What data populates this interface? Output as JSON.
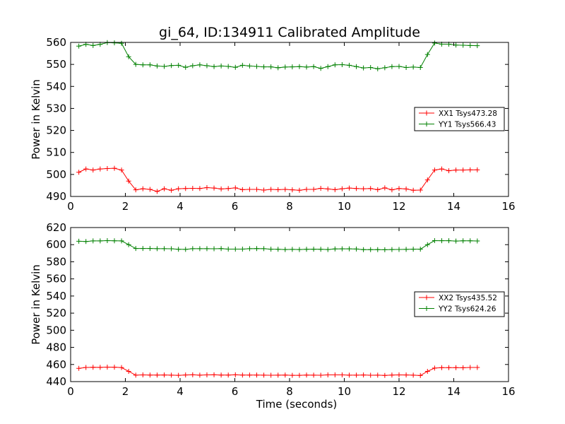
{
  "figure_title": "gi_64, ID:134911 Calibrated Amplitude",
  "colors": {
    "red": "#ff0000",
    "green": "#008000"
  },
  "chart_data": [
    {
      "type": "line",
      "title": "gi_64, ID:134911 Calibrated Amplitude",
      "xlabel": "",
      "ylabel": "Power in Kelvin",
      "xlim": [
        0,
        16
      ],
      "ylim": [
        490,
        560
      ],
      "xticks": [
        0,
        2,
        4,
        6,
        8,
        10,
        12,
        14,
        16
      ],
      "yticks": [
        490,
        500,
        510,
        520,
        530,
        540,
        550,
        560
      ],
      "grid": false,
      "legend_position": "right",
      "x": [
        0.3,
        0.56,
        0.82,
        1.08,
        1.34,
        1.6,
        1.86,
        2.12,
        2.38,
        2.64,
        2.9,
        3.16,
        3.42,
        3.68,
        3.94,
        4.2,
        4.46,
        4.72,
        4.98,
        5.24,
        5.5,
        5.76,
        6.02,
        6.28,
        6.54,
        6.8,
        7.06,
        7.32,
        7.58,
        7.84,
        8.1,
        8.36,
        8.62,
        8.88,
        9.14,
        9.4,
        9.66,
        9.92,
        10.18,
        10.44,
        10.7,
        10.96,
        11.22,
        11.48,
        11.74,
        12.0,
        12.26,
        12.52,
        12.78,
        13.04,
        13.3,
        13.56,
        13.82,
        14.08,
        14.34,
        14.6,
        14.86
      ],
      "series": [
        {
          "name": "XX1 Tsys473.28",
          "color": "#ff0000",
          "values": [
            501,
            502.5,
            502,
            502.5,
            502.7,
            502.8,
            502,
            497,
            493,
            493.5,
            493.2,
            492.3,
            493.5,
            492.8,
            493.5,
            493.6,
            493.7,
            493.6,
            494,
            493.8,
            493.4,
            493.6,
            493.9,
            493.1,
            493.2,
            493.2,
            492.9,
            493.2,
            493.1,
            493.2,
            493.0,
            492.8,
            493.2,
            493.2,
            493.7,
            493.4,
            493.1,
            493.5,
            493.8,
            493.6,
            493.5,
            493.6,
            493.1,
            493.9,
            493.0,
            493.6,
            493.4,
            492.8,
            492.9,
            497.5,
            502,
            502.5,
            501.7,
            502,
            502,
            502.1,
            502.1
          ]
        },
        {
          "name": "YY1 Tsys566.43",
          "color": "#008000",
          "values": [
            558.3,
            559.1,
            558.6,
            559.1,
            559.9,
            559.8,
            559.6,
            553.5,
            550,
            549.8,
            549.8,
            549.3,
            549.1,
            549.5,
            549.6,
            548.7,
            549.4,
            549.8,
            549.4,
            549.0,
            549.3,
            549.1,
            548.7,
            549.6,
            549.3,
            549.1,
            548.9,
            548.9,
            548.5,
            548.8,
            548.9,
            549.0,
            548.8,
            549.0,
            548.2,
            549.0,
            549.8,
            549.9,
            549.6,
            549.0,
            548.4,
            548.6,
            548.0,
            548.5,
            549.0,
            549.1,
            548.6,
            548.8,
            548.6,
            554.5,
            559.7,
            559.2,
            559.2,
            558.8,
            558.7,
            558.6,
            558.5
          ]
        }
      ]
    },
    {
      "type": "line",
      "title": "",
      "xlabel": "Time (seconds)",
      "ylabel": "Power in Kelvin",
      "xlim": [
        0,
        16
      ],
      "ylim": [
        440,
        620
      ],
      "xticks": [
        0,
        2,
        4,
        6,
        8,
        10,
        12,
        14,
        16
      ],
      "yticks": [
        440,
        460,
        480,
        500,
        520,
        540,
        560,
        580,
        600,
        620
      ],
      "grid": false,
      "legend_position": "right",
      "x": [
        0.3,
        0.56,
        0.82,
        1.08,
        1.34,
        1.6,
        1.86,
        2.12,
        2.38,
        2.64,
        2.9,
        3.16,
        3.42,
        3.68,
        3.94,
        4.2,
        4.46,
        4.72,
        4.98,
        5.24,
        5.5,
        5.76,
        6.02,
        6.28,
        6.54,
        6.8,
        7.06,
        7.32,
        7.58,
        7.84,
        8.1,
        8.36,
        8.62,
        8.88,
        9.14,
        9.4,
        9.66,
        9.92,
        10.18,
        10.44,
        10.7,
        10.96,
        11.22,
        11.48,
        11.74,
        12.0,
        12.26,
        12.52,
        12.78,
        13.04,
        13.3,
        13.56,
        13.82,
        14.08,
        14.34,
        14.6,
        14.86
      ],
      "series": [
        {
          "name": "XX2 Tsys435.52",
          "color": "#ff0000",
          "values": [
            455.5,
            456.5,
            456.7,
            456.6,
            456.9,
            456.8,
            456.4,
            452,
            447.5,
            447.8,
            447.6,
            447.6,
            447.7,
            447.5,
            447.3,
            447.7,
            447.9,
            447.5,
            447.8,
            447.9,
            447.6,
            447.6,
            447.9,
            447.6,
            447.6,
            447.6,
            447.5,
            447.4,
            447.5,
            447.6,
            447.3,
            447.3,
            447.6,
            447.5,
            447.4,
            447.8,
            447.8,
            447.8,
            447.5,
            447.5,
            447.7,
            447.4,
            447.5,
            447.2,
            447.6,
            447.8,
            447.7,
            447.5,
            447.1,
            452,
            455.8,
            456.3,
            456.3,
            456.3,
            456.2,
            456.5,
            456.5
          ]
        },
        {
          "name": "YY2 Tsys624.26",
          "color": "#008000",
          "values": [
            604,
            603.7,
            604.4,
            604.4,
            604.7,
            604.5,
            604.4,
            600,
            595.5,
            595.5,
            595.5,
            595.3,
            595.3,
            595.2,
            594.6,
            594.5,
            595.3,
            595.3,
            595.3,
            595.2,
            595.4,
            594.8,
            594.8,
            594.8,
            595.3,
            595.4,
            595.3,
            594.7,
            594.6,
            594.3,
            594.5,
            594.3,
            594.6,
            594.7,
            594.6,
            594.3,
            595.0,
            595.1,
            595.1,
            594.9,
            594.2,
            594.2,
            594.2,
            594.1,
            594.3,
            594.4,
            594.5,
            594.7,
            594.7,
            600,
            604.7,
            604.6,
            604.6,
            604.2,
            604.5,
            604.5,
            604.3
          ]
        }
      ]
    }
  ]
}
